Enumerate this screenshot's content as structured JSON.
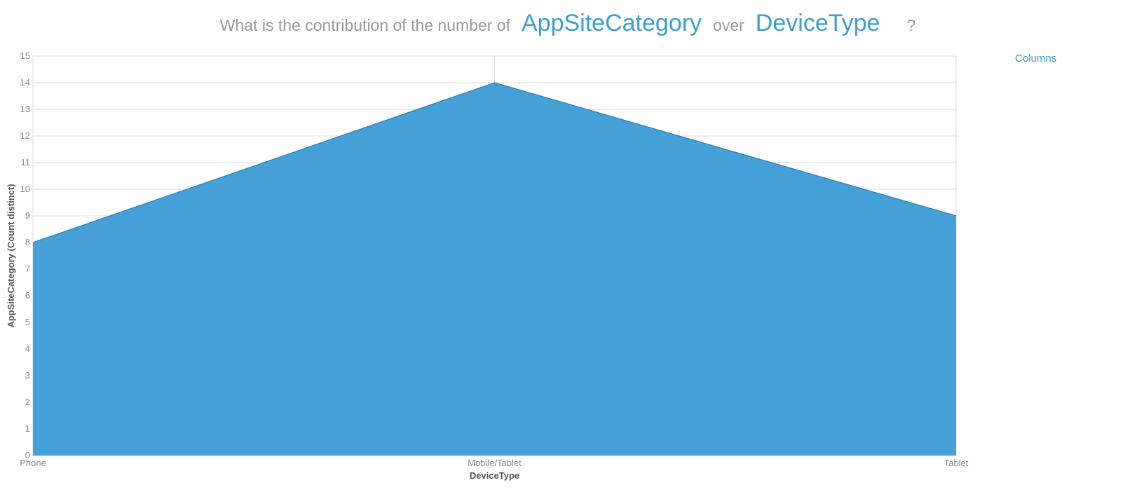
{
  "question": {
    "prefix": "What is the contribution of the number of",
    "field1": "AppSiteCategory",
    "middle": "over",
    "field2": "DeviceType",
    "suffix": "?"
  },
  "chart_type_link": "Columns",
  "colors": {
    "area_fill": "#3a9bd5",
    "area_stroke": "#2f7fb4",
    "grid": "#dedede",
    "accent": "#3b9fd1"
  },
  "chart_data": {
    "type": "area",
    "categories": [
      "Phone",
      "Mobile/Tablet",
      "Tablet"
    ],
    "series": [
      {
        "values": [
          8,
          14,
          9
        ]
      }
    ],
    "xlabel": "DeviceType",
    "ylabel": "AppSiteCategory (Count distinct)",
    "ylim": [
      0,
      15
    ],
    "yticks": [
      0,
      1,
      2,
      3,
      4,
      5,
      6,
      7,
      8,
      9,
      10,
      11,
      12,
      13,
      14,
      15
    ],
    "grid": true,
    "legend": "none"
  }
}
